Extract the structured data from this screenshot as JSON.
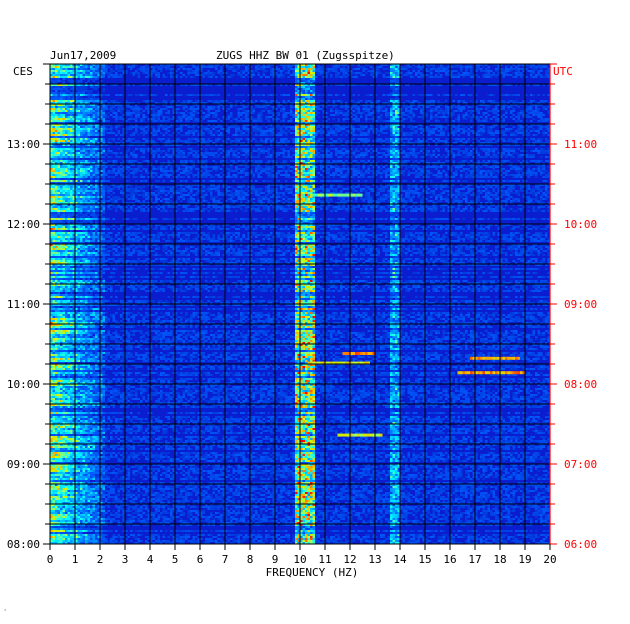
{
  "chart_data": {
    "type": "heatmap",
    "title": "ZUGS HHZ BW 01 (Zugsspitze)",
    "date": "Jun17,2009",
    "left_timezone": "CES",
    "right_timezone": "UTC",
    "xlabel": "FREQUENCY (HZ)",
    "xlim": [
      0,
      20
    ],
    "x_ticks": [
      "0",
      "1",
      "2",
      "3",
      "4",
      "5",
      "6",
      "7",
      "8",
      "9",
      "10",
      "11",
      "12",
      "13",
      "14",
      "15",
      "16",
      "17",
      "18",
      "19",
      "20"
    ],
    "left_time_labels": [
      "13:00",
      "12:00",
      "11:00",
      "10:00",
      "09:00",
      "08:00"
    ],
    "right_time_labels": [
      "11:00",
      "10:00",
      "09:00",
      "08:00",
      "07:00",
      "06:00"
    ],
    "colors": {
      "background": "#0b1ecf",
      "grid": "#000000",
      "utc_label": "#ff0000",
      "cold": "#0000a0",
      "hot": "#ff2000"
    },
    "dominant_frequency_hz": 10.2,
    "secondary_frequency_hz": 13.8
  }
}
